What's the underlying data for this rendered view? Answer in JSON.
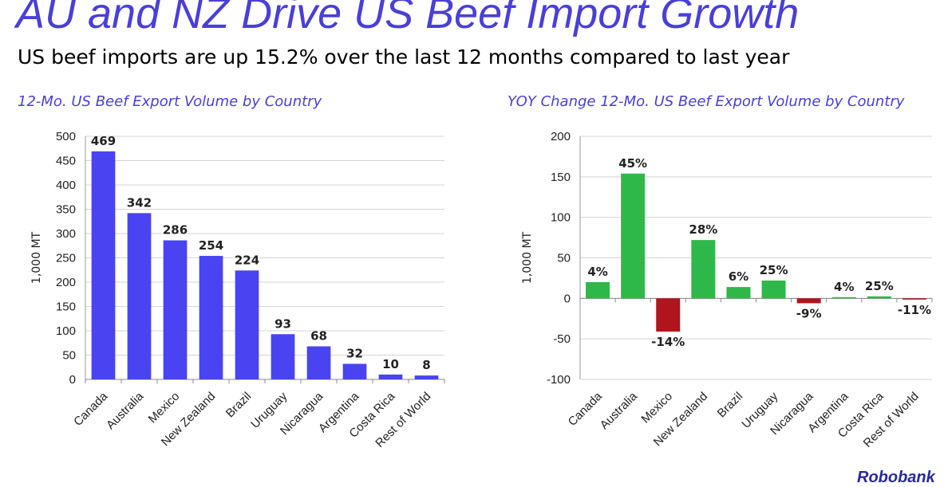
{
  "header": {
    "title": "AU and NZ Drive US Beef Import Growth",
    "subtitle": "US beef imports are up 15.2% over the last 12 months compared to last year"
  },
  "footer": {
    "logo_text": "Robobank"
  },
  "colors": {
    "title": "#4a3fd8",
    "bar_volume": "#4a43f2",
    "positive": "#2fb84a",
    "negative": "#b0141c"
  },
  "chart_data": [
    {
      "type": "bar",
      "title": "12-Mo. US Beef Export Volume by Country",
      "ylabel": "1,000 MT",
      "categories": [
        "Canada",
        "Australia",
        "Mexico",
        "New Zealand",
        "Brazil",
        "Uruguay",
        "Nicaragua",
        "Argentina",
        "Costa Rica",
        "Rest of World"
      ],
      "values": [
        469,
        342,
        286,
        254,
        224,
        93,
        68,
        32,
        10,
        8
      ],
      "data_labels": [
        "469",
        "342",
        "286",
        "254",
        "224",
        "93",
        "68",
        "32",
        "10",
        "8"
      ],
      "ylim": [
        0,
        500
      ],
      "yticks": [
        0,
        50,
        100,
        150,
        200,
        250,
        300,
        350,
        400,
        450,
        500
      ],
      "grid": true
    },
    {
      "type": "bar",
      "title": "YOY Change 12-Mo. US Beef Export Volume by Country",
      "ylabel": "1,000 MT",
      "categories": [
        "Canada",
        "Australia",
        "Mexico",
        "New Zealand",
        "Brazil",
        "Uruguay",
        "Nicaragua",
        "Argentina",
        "Costa Rica",
        "Rest of World"
      ],
      "values": [
        20,
        154,
        -41,
        72,
        14,
        22,
        -6,
        1.5,
        2.5,
        -1
      ],
      "data_labels": [
        "4%",
        "45%",
        "-14%",
        "28%",
        "6%",
        "25%",
        "-9%",
        "4%",
        "25%",
        "-11%"
      ],
      "ylim": [
        -100,
        200
      ],
      "yticks": [
        -100,
        -50,
        0,
        50,
        100,
        150,
        200
      ],
      "grid": true
    }
  ]
}
